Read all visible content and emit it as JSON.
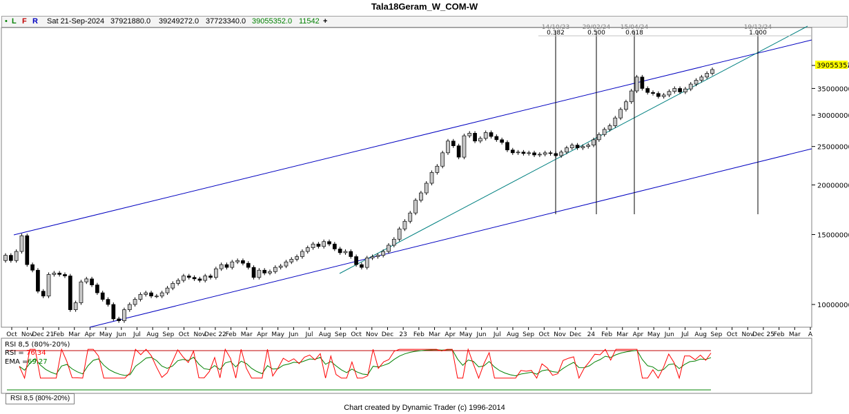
{
  "header": {
    "title": "Tala18Geram_W_COM-W"
  },
  "infobar": {
    "dot": "•",
    "l": "L",
    "f": "F",
    "r": "R",
    "date": "Sat 21-Sep-2024",
    "open": "37921880.0",
    "high": "39249272.0",
    "low": "37723340.0",
    "close": "39055352.0",
    "extra": "11542",
    "plus": "+"
  },
  "colors": {
    "up_candle": "#c8c8c8",
    "down_candle": "#000000",
    "channel": "#0000c0",
    "trend": "#008080",
    "rsi": "#ff0000",
    "ema": "#008000",
    "band_top": "#c00000",
    "band_bottom": "#008000",
    "price_tag": "#ffff00"
  },
  "price_panel": {
    "current_price_label": "39055352.",
    "y_ticks": [
      "40000000.",
      "35000000.",
      "30000000.",
      "25000000.",
      "20000000.",
      "15000000.",
      "10000000."
    ],
    "x_ticks": [
      "Oct",
      "Nov",
      "Dec 21",
      "Feb",
      "Mar",
      "Apr",
      "May",
      "Jun",
      "Jul",
      "Aug",
      "Sep",
      "Oct",
      "Nov",
      "Dec 22",
      "Feb",
      "Mar",
      "Apr",
      "May",
      "Jun",
      "Jul",
      "Aug",
      "Sep",
      "Oct",
      "Nov",
      "Dec",
      "23",
      "Feb",
      "Mar",
      "Apr",
      "May",
      "Jun",
      "Jul",
      "Aug",
      "Sep",
      "Oct",
      "Nov",
      "Dec",
      "24",
      "Feb",
      "Mar",
      "Apr",
      "May",
      "Jun",
      "Jul",
      "Aug",
      "Sep",
      "Oct",
      "Nov",
      "Dec 25",
      "Feb",
      "Mar",
      "A"
    ],
    "fib_labels": [
      {
        "top": "14/10/23",
        "ratio": "0.382"
      },
      {
        "top": "29/02/24",
        "ratio": "0.500"
      },
      {
        "top": "15/04/24",
        "ratio": "0.618"
      },
      {
        "top": "19/12/24",
        "ratio": "1.000"
      }
    ]
  },
  "rsi_panel": {
    "title": "RSI 8,5 (80%-20%)",
    "rsi_label": "RSI =",
    "rsi_value": "76.34",
    "ema_label": "EMA =",
    "ema_value": "69.27",
    "tab_label": "RSI 8,5 (80%-20%)"
  },
  "footer": {
    "text": "Chart created by Dynamic Trader  (c) 1996-2014"
  },
  "chart_data": {
    "type": "candlestick",
    "title": "Tala18Geram_W_COM-W",
    "scale": "log",
    "ylim": [
      8500000,
      46000000
    ],
    "x_range": [
      "Sep 2021",
      "Apr 2025"
    ],
    "weekly_closes": [
      13300000,
      12900000,
      13600000,
      14900000,
      12600000,
      12200000,
      10800000,
      10500000,
      11900000,
      12000000,
      11900000,
      11800000,
      9700000,
      10100000,
      11400000,
      11600000,
      11200000,
      10700000,
      10300000,
      10000000,
      9200000,
      9100000,
      9700000,
      10000000,
      10300000,
      10600000,
      10700000,
      10500000,
      10500000,
      10700000,
      11000000,
      11300000,
      11500000,
      11800000,
      11700000,
      11600000,
      11500000,
      11800000,
      11700000,
      12300000,
      12600000,
      12400000,
      12800000,
      12900000,
      12700000,
      12400000,
      11700000,
      12200000,
      12000000,
      12100000,
      12400000,
      12500000,
      12800000,
      13000000,
      13200000,
      13600000,
      13900000,
      14200000,
      14000000,
      14400000,
      14200000,
      13800000,
      13500000,
      13600000,
      13200000,
      12600000,
      12400000,
      13100000,
      13200000,
      13300000,
      13600000,
      14100000,
      14600000,
      15500000,
      16200000,
      17000000,
      18300000,
      19100000,
      20200000,
      21500000,
      22300000,
      24100000,
      25800000,
      25100000,
      23500000,
      26600000,
      27000000,
      25800000,
      26200000,
      27100000,
      26500000,
      26000000,
      25600000,
      24500000,
      24100000,
      24200000,
      24000000,
      24100000,
      23800000,
      23900000,
      24100000,
      24000000,
      23700000,
      24200000,
      24800000,
      25200000,
      24800000,
      25000000,
      25200000,
      26000000,
      26800000,
      27600000,
      28200000,
      29500000,
      31000000,
      32400000,
      34500000,
      37400000,
      35000000,
      34200000,
      34000000,
      33400000,
      33700000,
      34400000,
      35000000,
      34300000,
      34900000,
      35900000,
      36700000,
      37400000,
      38200000,
      39055352
    ],
    "last_bar": {
      "date": "Sat 21-Sep-2024",
      "open": 37921880.0,
      "high": 39249272.0,
      "low": 37723340.0,
      "close": 39055352.0
    },
    "fib_time_ratios": [
      0.382,
      0.5,
      0.618,
      1.0
    ],
    "indicator": {
      "name": "RSI 8,5 (80%-20%)",
      "rsi": 76.34,
      "ema": 69.27,
      "bands": [
        80,
        20
      ]
    }
  }
}
